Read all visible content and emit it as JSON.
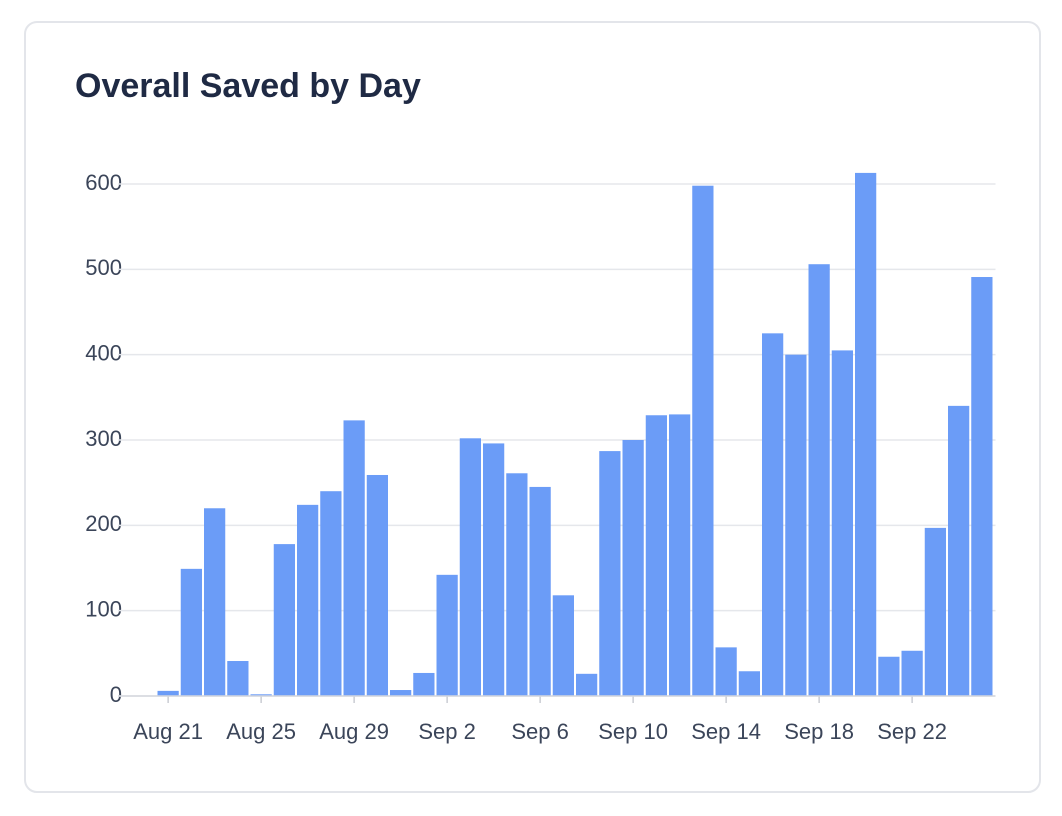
{
  "chart_data": {
    "type": "bar",
    "title": "Overall Saved by Day",
    "categories": [
      "Aug 21",
      null,
      null,
      null,
      "Aug 25",
      null,
      null,
      null,
      "Aug 29",
      null,
      null,
      null,
      "Sep 2",
      null,
      null,
      null,
      "Sep 6",
      null,
      null,
      null,
      "Sep 10",
      null,
      null,
      null,
      "Sep 14",
      null,
      null,
      null,
      "Sep 18",
      null,
      null,
      null,
      "Sep 22",
      null,
      null,
      null
    ],
    "values": [
      6,
      149,
      220,
      41,
      2,
      178,
      224,
      240,
      323,
      259,
      7,
      27,
      142,
      302,
      296,
      261,
      245,
      118,
      26,
      287,
      300,
      329,
      330,
      598,
      57,
      29,
      425,
      400,
      506,
      405,
      613,
      46,
      53,
      197,
      340,
      491
    ],
    "color": "#6b9cf7",
    "ylim": [
      0,
      600
    ],
    "yticks": [
      0,
      100,
      200,
      300,
      400,
      500,
      600
    ],
    "grid": true
  }
}
